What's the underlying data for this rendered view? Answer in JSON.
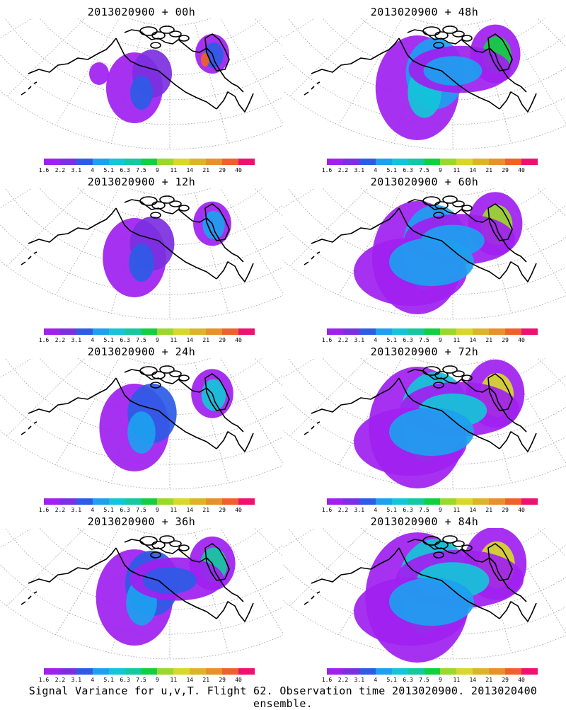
{
  "colorbar": {
    "labels": [
      "1.6",
      "2.2",
      "3.1",
      "4",
      "5.1",
      "6.3",
      "7.5",
      "9",
      "11",
      "14",
      "21",
      "29",
      "40"
    ],
    "colors": [
      "#a020f0",
      "#7b2fe0",
      "#2d5be6",
      "#1ca0f0",
      "#14c4d8",
      "#15c8a0",
      "#10d040",
      "#9ad82c",
      "#d8d82a",
      "#dcb42a",
      "#e8902a",
      "#f0602a",
      "#f01070"
    ]
  },
  "panels": [
    {
      "title": "2013020900  + 00h",
      "intensity": 0
    },
    {
      "title": "2013020900  + 12h",
      "intensity": 1
    },
    {
      "title": "2013020900  + 24h",
      "intensity": 2
    },
    {
      "title": "2013020900  + 36h",
      "intensity": 3
    },
    {
      "title": "2013020900  + 48h",
      "intensity": 4
    },
    {
      "title": "2013020900  + 60h",
      "intensity": 5
    },
    {
      "title": "2013020900  + 72h",
      "intensity": 6
    },
    {
      "title": "2013020900  + 84h",
      "intensity": 7
    }
  ],
  "caption": "Signal Variance for u,v,T. Flight 62. Observation time 2013020900. 2013020400 ensemble."
}
